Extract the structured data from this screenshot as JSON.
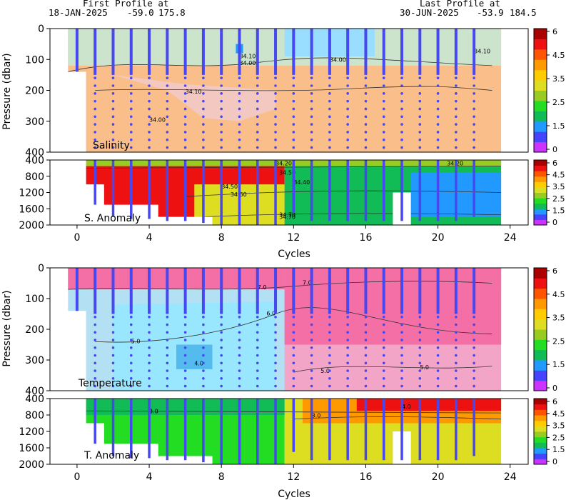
{
  "header": {
    "first_title": "First Profile at",
    "first_date": "18-JAN-2025",
    "first_lat": "-59.0",
    "first_lon": "175.8",
    "last_title": "Last Profile at",
    "last_date": "30-JUN-2025",
    "last_lat": "-53.9",
    "last_lon": "184.5"
  },
  "colors": {
    "colorbar": [
      "#cc33ff",
      "#4444ff",
      "#2299ff",
      "#11bb55",
      "#22dd22",
      "#99cc22",
      "#dddd22",
      "#ffcc00",
      "#ff9900",
      "#ff5500",
      "#ee1111",
      "#aa0000"
    ],
    "salinity_shallow": "#cce4cc",
    "salinity_fresh": "#99ddff",
    "salinity_main": "#f9be8a",
    "salinity_pink": "#f3c8c0",
    "temp_pink": "#f36fa6",
    "temp_light_pink": "#f2a5c7",
    "temp_blue": "#99e6ff",
    "temp_lightblue": "#b3e0f2",
    "profile": "#4848f0"
  },
  "chart_data": [
    {
      "type": "heatmap",
      "panel": "salinity",
      "label": "Salinity",
      "ylabel": "Pressure (dbar)",
      "ylim": [
        400,
        0
      ],
      "yticks": [
        0,
        100,
        200,
        300,
        400
      ],
      "xlim": [
        -1.5,
        25
      ],
      "contours": [
        "34.00",
        "34.10",
        "34.00",
        "34.10",
        "34.00",
        "34.10"
      ],
      "colorbar_ticks": [
        "6",
        "4.5",
        "3.5",
        "2.5",
        "1.5",
        "0"
      ]
    },
    {
      "type": "heatmap",
      "panel": "salinity_anomaly",
      "label": "S. Anomaly",
      "ylim": [
        2000,
        400
      ],
      "yticks": [
        400,
        800,
        1200,
        1600,
        2000
      ],
      "xlim": [
        -1.5,
        25
      ],
      "xticks": [
        0,
        4,
        8,
        12,
        16,
        20,
        24
      ],
      "xlabel": "Cycles",
      "contours": [
        "34.20",
        "34.50",
        "34.40",
        "34.50",
        "34.60",
        "34.70",
        "34.20",
        "34.70"
      ],
      "colorbar_ticks": [
        "6",
        "4.5",
        "3.5",
        "2.5",
        "1.5",
        "0"
      ]
    },
    {
      "type": "heatmap",
      "panel": "temperature",
      "label": "Temperature",
      "ylabel": "Pressure (dbar)",
      "ylim": [
        400,
        0
      ],
      "yticks": [
        0,
        100,
        200,
        300,
        400
      ],
      "xlim": [
        -1.5,
        25
      ],
      "contours": [
        "7.0",
        "7.0",
        "6.0",
        "5.0",
        "5.0",
        "4.0",
        "5.0"
      ],
      "colorbar_ticks": [
        "6",
        "4.5",
        "3.5",
        "2.5",
        "1.5",
        "0"
      ]
    },
    {
      "type": "heatmap",
      "panel": "temperature_anomaly",
      "label": "T. Anomaly",
      "ylim": [
        2000,
        400
      ],
      "yticks": [
        400,
        800,
        1200,
        1600,
        2000
      ],
      "xlim": [
        -1.5,
        25
      ],
      "xticks": [
        0,
        4,
        8,
        12,
        16,
        20,
        24
      ],
      "xlabel": "Cycles",
      "contours": [
        "4.0",
        "3.0",
        "3.0"
      ],
      "colorbar_ticks": [
        "6",
        "4.5",
        "3.5",
        "2.5",
        "1.5",
        "0"
      ]
    }
  ],
  "profiles": {
    "cycles": [
      0,
      1,
      2,
      3,
      4,
      5,
      6,
      7,
      8,
      9,
      10,
      11,
      12,
      13,
      14,
      15,
      16,
      17,
      18,
      19,
      20,
      21,
      22
    ],
    "upper_depth_max": [
      140,
      400,
      400,
      400,
      400,
      400,
      400,
      400,
      400,
      400,
      400,
      400,
      400,
      400,
      400,
      400,
      400,
      400,
      400,
      400,
      400,
      400,
      400
    ],
    "lower_depth_max": [
      null,
      1500,
      1800,
      1850,
      1850,
      1900,
      1900,
      1950,
      2000,
      2000,
      2000,
      2000,
      1700,
      1900,
      1900,
      1900,
      1900,
      1900,
      1900,
      1900,
      1900,
      1900,
      1800
    ]
  }
}
